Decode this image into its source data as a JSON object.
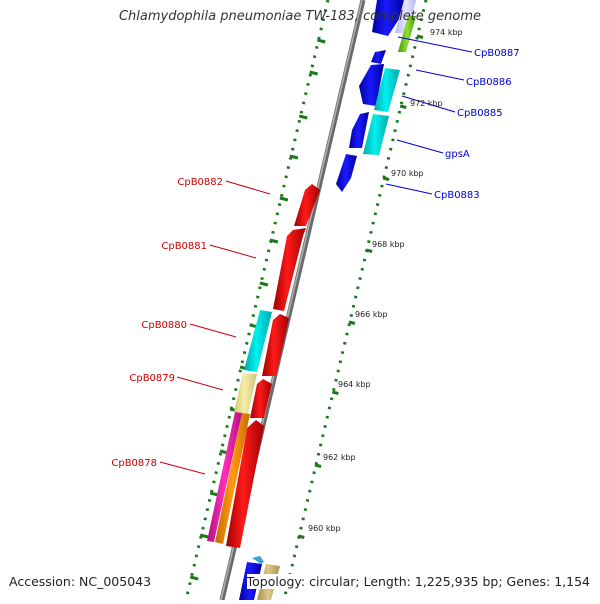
{
  "title": "Chlamydophila pneumoniae TW-183, complete genome",
  "footer": {
    "accession": "Accession: NC_005043",
    "summary": "Topology: circular; Length: 1,225,935 bp; Genes: 1,154"
  },
  "scale_labels": [
    "974 kbp",
    "972 kbp",
    "970 kbp",
    "968 kbp",
    "966 kbp",
    "964 kbp",
    "962 kbp",
    "960 kbp"
  ],
  "forward_gene_labels": [
    "CpB0887",
    "CpB0886",
    "CpB0885",
    "gpsA",
    "CpB0883"
  ],
  "reverse_gene_labels": [
    "CpB0882",
    "CpB0881",
    "CpB0880",
    "CpB0879",
    "CpB0878"
  ],
  "colors": {
    "forward_cds": "#0000ff",
    "reverse_cds": "#ff0000",
    "forward_label": "#0000cc",
    "reverse_label": "#cc0000",
    "backbone": "#888888",
    "tick": "#1a7a1a",
    "cyan_feature": "#00e5e5",
    "khaki_feature": "#efe49a",
    "orange_feature": "#ff8c00",
    "magenta_feature": "#ee1fa8",
    "green_feature": "#6ac21a",
    "tan_feature": "#c6b070"
  }
}
